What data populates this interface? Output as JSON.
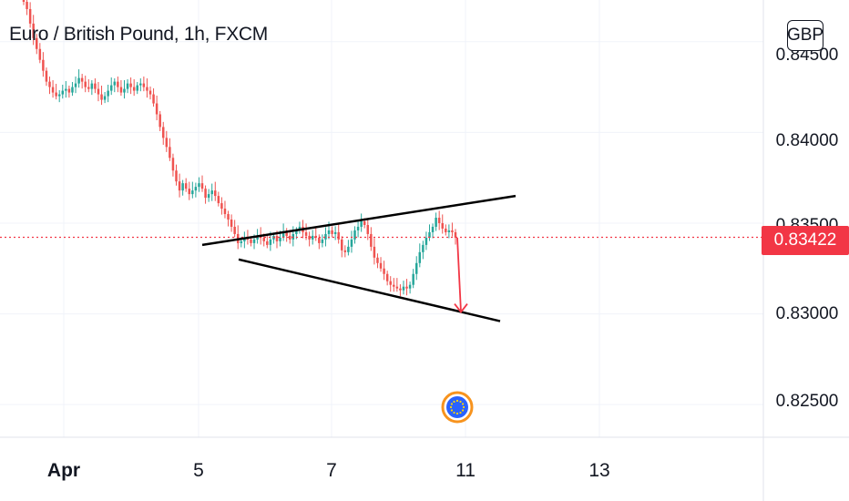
{
  "header": {
    "title": "Euro / British Pound, 1h, FXCM",
    "currency": "GBP"
  },
  "price_axis": {
    "labels": [
      "0.84500",
      "0.84000",
      "0.83500",
      "0.83000",
      "0.82500"
    ],
    "current_price": "0.83422"
  },
  "time_axis": {
    "labels": [
      "Apr",
      "5",
      "7",
      "11",
      "13"
    ]
  },
  "colors": {
    "up": "#26a69a",
    "down": "#ef5350",
    "current_price_line": "#f23645",
    "trendline": "#000000",
    "arrow": "#f23645",
    "event_icon_ring": "#f7931e",
    "event_icon_fill": "#2962ff"
  },
  "annotations": {
    "pattern": "broadening wedge trendlines",
    "arrow": "down",
    "event_icon": "eu-flag-icon"
  },
  "chart_data": {
    "type": "candlestick",
    "title": "Euro / British Pound, 1h, FXCM",
    "ylabel": "GBP",
    "ylim": [
      0.8232,
      0.8473
    ],
    "yticks": [
      0.845,
      0.84,
      0.835,
      0.83,
      0.825
    ],
    "x_ticks": [
      "Apr",
      "5",
      "7",
      "11",
      "13"
    ],
    "current_price": 0.83422,
    "grid": true,
    "close_series": [
      0.8472,
      0.8468,
      0.846,
      0.8452,
      0.8446,
      0.844,
      0.8434,
      0.8428,
      0.8425,
      0.8422,
      0.842,
      0.8421,
      0.8423,
      0.8424,
      0.8422,
      0.8425,
      0.8427,
      0.843,
      0.8428,
      0.8425,
      0.8424,
      0.8427,
      0.8424,
      0.8421,
      0.8418,
      0.842,
      0.8423,
      0.8426,
      0.8428,
      0.8425,
      0.8422,
      0.8424,
      0.8427,
      0.8425,
      0.8423,
      0.8426,
      0.8427,
      0.8425,
      0.8423,
      0.8421,
      0.8416,
      0.841,
      0.8403,
      0.8397,
      0.8392,
      0.8386,
      0.8379,
      0.8373,
      0.8368,
      0.8372,
      0.8369,
      0.8366,
      0.8368,
      0.837,
      0.8372,
      0.8369,
      0.8364,
      0.8366,
      0.8368,
      0.8365,
      0.8361,
      0.8358,
      0.8355,
      0.8352,
      0.8348,
      0.8344,
      0.8339,
      0.834,
      0.8342,
      0.8341,
      0.8339,
      0.8341,
      0.8343,
      0.8342,
      0.834,
      0.8338,
      0.8341,
      0.8343,
      0.834,
      0.8342,
      0.8345,
      0.8343,
      0.8341,
      0.8344,
      0.8346,
      0.8348,
      0.8345,
      0.8343,
      0.8341,
      0.8343,
      0.8342,
      0.8339,
      0.8341,
      0.8344,
      0.8346,
      0.8344,
      0.8345,
      0.8341,
      0.8335,
      0.8334,
      0.8337,
      0.8341,
      0.8346,
      0.8348,
      0.8351,
      0.8349,
      0.8344,
      0.8337,
      0.8331,
      0.8328,
      0.8325,
      0.8322,
      0.8318,
      0.8316,
      0.8315,
      0.8314,
      0.8313,
      0.8315,
      0.8314,
      0.8316,
      0.8322,
      0.8328,
      0.8334,
      0.8338,
      0.8342,
      0.8345,
      0.8348,
      0.8353,
      0.835,
      0.8347,
      0.8345,
      0.8346,
      0.8345,
      0.8342
    ],
    "trendlines": [
      {
        "name": "upper",
        "from": 0.8338,
        "to": 0.8365
      },
      {
        "name": "lower",
        "from": 0.833,
        "to": 0.8296
      }
    ],
    "arrow_target": 0.8301
  }
}
